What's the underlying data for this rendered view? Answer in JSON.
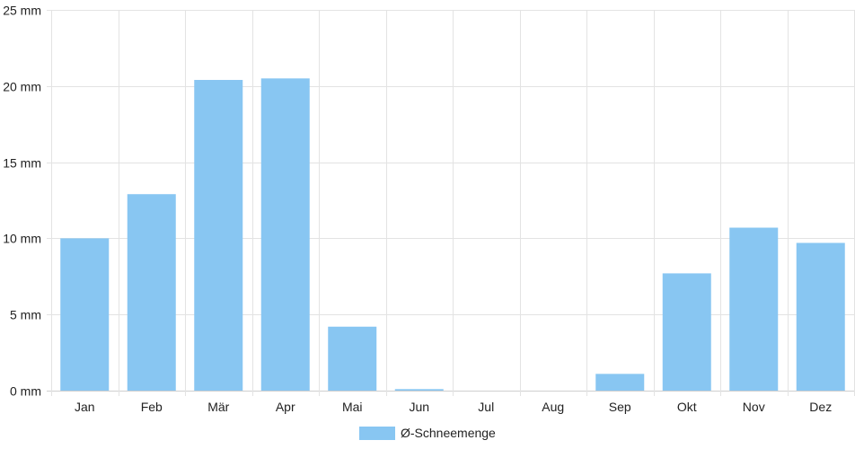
{
  "chart_data": {
    "type": "bar",
    "categories": [
      "Jan",
      "Feb",
      "Mär",
      "Apr",
      "Mai",
      "Jun",
      "Jul",
      "Aug",
      "Sep",
      "Okt",
      "Nov",
      "Dez"
    ],
    "series": [
      {
        "name": "Ø-Schneemenge",
        "color": "#88c6f2",
        "values": [
          10.0,
          12.9,
          20.4,
          20.5,
          4.2,
          0.1,
          0,
          0,
          1.1,
          7.7,
          10.7,
          9.7
        ]
      }
    ],
    "ylim": [
      0,
      25
    ],
    "yticks": [
      0,
      5,
      10,
      15,
      20,
      25
    ],
    "ytick_labels": [
      "0 mm",
      "5 mm",
      "10 mm",
      "15 mm",
      "20 mm",
      "25 mm"
    ],
    "grid": true,
    "legend_position": "bottom-center"
  }
}
